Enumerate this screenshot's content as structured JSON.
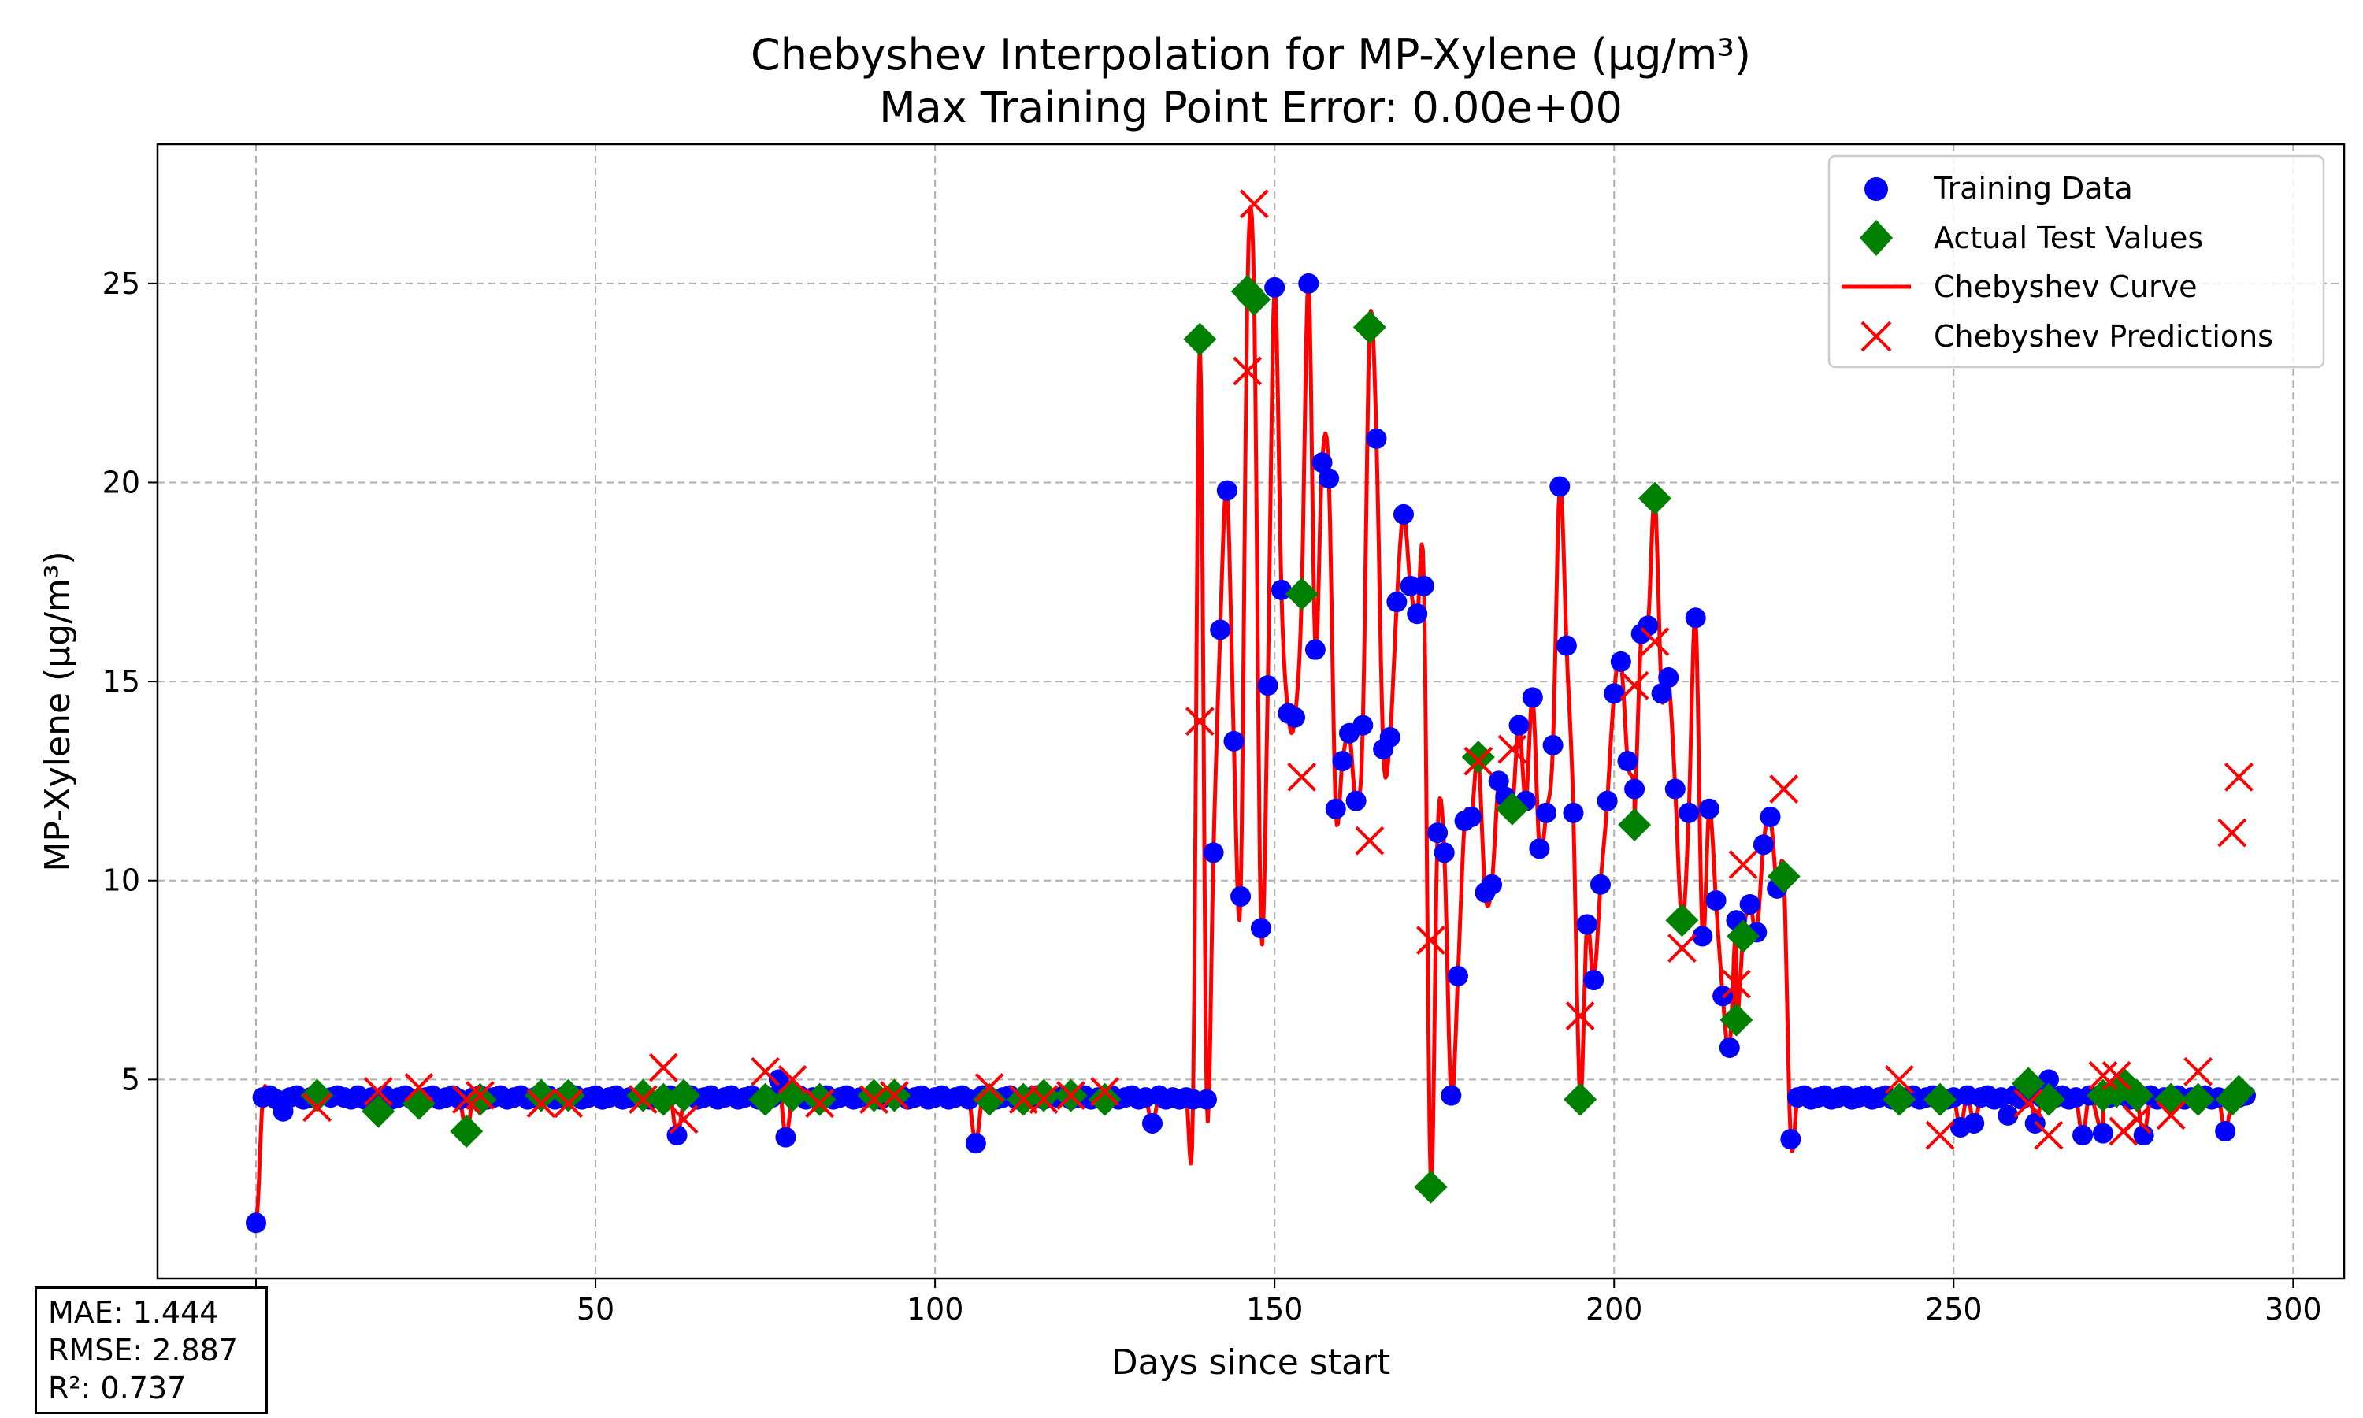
{
  "chart_data": {
    "type": "line",
    "title": "Chebyshev Interpolation for MP-Xylene (μg/m³)",
    "subtitle": "Max Training Point Error: 0.00e+00",
    "xlabel": "Days since start",
    "ylabel": "MP-Xylene (μg/m³)",
    "xlim": [
      -14.5,
      307.5
    ],
    "ylim": [
      0,
      28.5
    ],
    "xticks": [
      0,
      50,
      100,
      150,
      200,
      250,
      300
    ],
    "yticks": [
      5,
      10,
      15,
      20,
      25
    ],
    "grid": true,
    "legend_position": "top-right",
    "legend": {
      "training": "Training Data",
      "test": "Actual Test Values",
      "curve": "Chebyshev Curve",
      "predictions": "Chebyshev Predictions"
    },
    "colors": {
      "training": "#0000ff",
      "test": "#008000",
      "curve": "#ff0000",
      "predictions": "#ff0000"
    },
    "training_data": {
      "x": [
        0,
        1,
        2,
        3,
        4,
        5,
        6,
        7,
        8,
        9,
        11,
        12,
        13,
        14,
        15,
        16,
        17,
        19,
        20,
        21,
        22,
        23,
        25,
        26,
        27,
        28,
        29,
        30,
        32,
        33,
        34,
        35,
        36,
        37,
        38,
        39,
        40,
        41,
        43,
        44,
        45,
        47,
        48,
        49,
        50,
        51,
        52,
        53,
        54,
        55,
        57,
        58,
        60,
        61,
        62,
        63,
        64,
        65,
        66,
        67,
        68,
        69,
        70,
        71,
        72,
        73,
        74,
        76,
        77,
        78,
        80,
        81,
        82,
        84,
        85,
        86,
        87,
        88,
        89,
        91,
        92,
        94,
        95,
        96,
        97,
        98,
        99,
        100,
        101,
        102,
        103,
        104,
        105,
        106,
        107,
        109,
        110,
        111,
        112,
        114,
        115,
        116,
        118,
        119,
        120,
        121,
        122,
        123,
        124,
        126,
        127,
        128,
        129,
        130,
        131,
        132,
        133,
        134,
        135,
        136,
        137,
        138,
        140,
        141,
        142,
        143,
        144,
        145,
        148,
        149,
        150,
        151,
        152,
        153,
        155,
        156,
        157,
        158,
        159,
        160,
        161,
        162,
        163,
        165,
        166,
        167,
        168,
        169,
        170,
        171,
        172,
        174,
        175,
        176,
        177,
        178,
        179,
        181,
        182,
        183,
        184,
        186,
        187,
        188,
        189,
        190,
        191,
        192,
        193,
        194,
        196,
        197,
        198,
        199,
        200,
        201,
        202,
        203,
        204,
        205,
        207,
        208,
        209,
        211,
        212,
        213,
        214,
        215,
        216,
        217,
        218,
        220,
        221,
        222,
        223,
        224,
        226,
        227,
        228,
        229,
        230,
        231,
        232,
        233,
        234,
        235,
        236,
        237,
        238,
        239,
        240,
        241,
        243,
        244,
        245,
        246,
        247,
        249,
        250,
        251,
        252,
        253,
        254,
        255,
        256,
        257,
        258,
        259,
        260,
        262,
        263,
        264,
        265,
        266,
        267,
        268,
        269,
        270,
        272,
        273,
        275,
        276,
        277,
        278,
        279,
        280,
        281,
        283,
        284,
        285,
        287,
        288,
        289,
        290,
        292,
        293
      ],
      "y": [
        1.4,
        4.55,
        4.6,
        4.5,
        4.2,
        4.55,
        4.6,
        4.5,
        4.55,
        4.6,
        4.55,
        4.6,
        4.55,
        4.5,
        4.6,
        4.5,
        4.55,
        4.6,
        4.5,
        4.55,
        4.6,
        4.5,
        4.55,
        4.6,
        4.5,
        4.55,
        4.6,
        4.5,
        4.55,
        4.6,
        4.5,
        4.55,
        4.6,
        4.5,
        4.55,
        4.6,
        4.5,
        4.55,
        4.6,
        4.5,
        4.55,
        4.6,
        4.5,
        4.55,
        4.6,
        4.5,
        4.55,
        4.6,
        4.5,
        4.55,
        4.6,
        4.5,
        4.55,
        4.6,
        3.6,
        4.55,
        4.6,
        4.5,
        4.55,
        4.6,
        4.5,
        4.55,
        4.6,
        4.5,
        4.55,
        4.6,
        4.5,
        4.55,
        5.0,
        3.55,
        4.6,
        4.5,
        4.55,
        4.6,
        4.5,
        4.55,
        4.6,
        4.5,
        4.55,
        4.6,
        4.5,
        4.55,
        4.6,
        4.5,
        4.55,
        4.6,
        4.5,
        4.55,
        4.6,
        4.5,
        4.55,
        4.6,
        4.5,
        3.4,
        4.6,
        4.5,
        4.55,
        4.6,
        4.5,
        4.55,
        4.6,
        4.5,
        4.55,
        4.6,
        4.5,
        4.55,
        4.6,
        4.5,
        4.55,
        4.6,
        4.5,
        4.55,
        4.6,
        4.5,
        4.55,
        3.9,
        4.6,
        4.5,
        4.55,
        4.5,
        4.55,
        4.5,
        4.5,
        10.7,
        16.3,
        19.8,
        13.5,
        9.6,
        8.8,
        14.9,
        24.9,
        17.3,
        14.2,
        14.1,
        25.0,
        15.8,
        20.5,
        20.1,
        11.8,
        13.0,
        13.7,
        12.0,
        13.9,
        21.1,
        13.3,
        13.6,
        17.0,
        19.2,
        17.4,
        16.7,
        17.4,
        11.2,
        10.7,
        4.6,
        7.6,
        11.5,
        11.6,
        9.7,
        9.9,
        12.5,
        12.1,
        13.9,
        12.0,
        14.6,
        10.8,
        11.7,
        13.4,
        19.9,
        15.9,
        11.7,
        8.9,
        7.5,
        9.9,
        12.0,
        14.7,
        15.5,
        13.0,
        12.3,
        16.2,
        16.4,
        14.7,
        15.1,
        12.3,
        11.7,
        16.6,
        8.6,
        11.8,
        9.5,
        7.1,
        5.8,
        9.0,
        9.4,
        8.7,
        10.9,
        11.6,
        9.8,
        3.5,
        4.55,
        4.6,
        4.5,
        4.55,
        4.6,
        4.5,
        4.55,
        4.6,
        4.5,
        4.55,
        4.6,
        4.5,
        4.55,
        4.6,
        4.5,
        4.55,
        4.6,
        4.5,
        4.55,
        4.6,
        4.5,
        4.55,
        3.8,
        4.6,
        3.9,
        4.55,
        4.6,
        4.5,
        4.55,
        4.1,
        4.6,
        4.5,
        3.9,
        4.55,
        5.0,
        4.55,
        4.6,
        4.5,
        4.55,
        3.6,
        4.6,
        3.65,
        4.55,
        4.6,
        4.5,
        4.55,
        3.6,
        4.6,
        4.5,
        4.55,
        4.6,
        4.5,
        4.55,
        4.6,
        4.5,
        4.55,
        3.7,
        4.55,
        4.6
      ]
    },
    "test_values": {
      "x": [
        9,
        18,
        24,
        31,
        33,
        42,
        46,
        57,
        60,
        63,
        75,
        79,
        83,
        91,
        94,
        108,
        113,
        116,
        120,
        125,
        139,
        146,
        147,
        154,
        164,
        173,
        180,
        185,
        195,
        203,
        206,
        210,
        218,
        219,
        225,
        242,
        248,
        261,
        264,
        272,
        274,
        275,
        277,
        282,
        286,
        291,
        292
      ],
      "y": [
        4.6,
        4.2,
        4.4,
        3.7,
        4.5,
        4.6,
        4.6,
        4.6,
        4.5,
        4.6,
        4.5,
        4.6,
        4.5,
        4.6,
        4.6,
        4.5,
        4.5,
        4.6,
        4.6,
        4.5,
        23.6,
        24.8,
        24.6,
        17.2,
        23.9,
        2.3,
        13.1,
        11.8,
        4.5,
        11.4,
        19.6,
        9.0,
        6.5,
        8.6,
        10.1,
        4.5,
        4.5,
        4.9,
        4.5,
        4.6,
        4.7,
        4.9,
        4.6,
        4.5,
        4.5,
        4.5,
        4.7
      ]
    },
    "predictions": {
      "x": [
        9,
        18,
        24,
        31,
        33,
        42,
        46,
        57,
        60,
        63,
        75,
        79,
        83,
        91,
        94,
        108,
        113,
        116,
        120,
        125,
        139,
        146,
        147,
        154,
        164,
        173,
        180,
        185,
        195,
        203,
        206,
        210,
        218,
        219,
        225,
        242,
        248,
        261,
        264,
        272,
        274,
        275,
        277,
        282,
        286,
        291,
        292
      ],
      "y": [
        4.3,
        4.7,
        4.8,
        4.5,
        4.6,
        4.4,
        4.4,
        4.5,
        5.3,
        4.0,
        5.2,
        5.0,
        4.4,
        4.5,
        4.6,
        4.8,
        4.5,
        4.5,
        4.6,
        4.7,
        14.0,
        22.8,
        27.0,
        12.6,
        11.0,
        8.5,
        13.0,
        13.3,
        6.6,
        14.9,
        16.0,
        8.3,
        7.4,
        10.4,
        12.3,
        5.0,
        3.6,
        4.4,
        3.6,
        5.1,
        5.1,
        3.7,
        4.0,
        4.1,
        5.2,
        11.2,
        12.6
      ]
    }
  },
  "metrics": {
    "mae": "MAE: 1.444",
    "rmse": "RMSE: 2.887",
    "r2": "R²: 0.737"
  }
}
